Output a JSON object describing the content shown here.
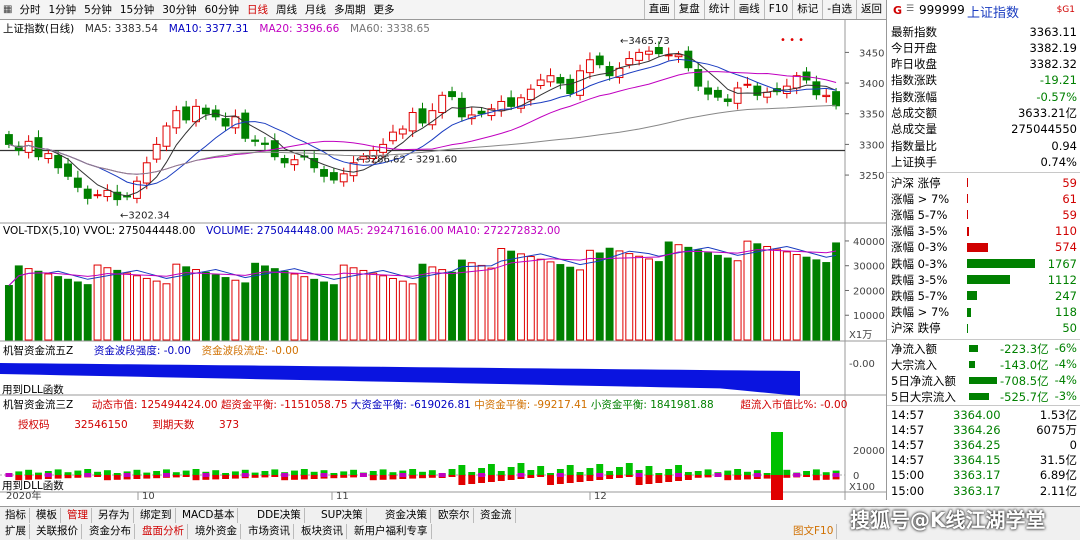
{
  "topbar": {
    "periods": [
      "分时",
      "1分钟",
      "5分钟",
      "15分钟",
      "30分钟",
      "60分钟",
      "日线",
      "周线",
      "月线",
      "多周期",
      "更多"
    ],
    "active": "日线",
    "right_buttons": [
      "直画",
      "复盘",
      "统计",
      "画线",
      "F10",
      "标记",
      "-自选",
      "返回"
    ]
  },
  "symbol": {
    "flag": "G",
    "code": "999999",
    "name": "上证指数",
    "badge": "$G1"
  },
  "main_legend": {
    "title": "上证指数(日线)",
    "ma5": "MA5: 3383.54",
    "ma10": "MA10: 3377.31",
    "ma20": "MA20: 3396.66",
    "ma60": "MA60: 3338.65"
  },
  "main_annotations": {
    "high": "3465.73",
    "low": "3202.34",
    "range": "3286.62 - 3291.60",
    "dots": "• • •"
  },
  "main_ticks": [
    "3450",
    "3400",
    "3350",
    "3300",
    "3250"
  ],
  "vol_legend": {
    "title": "VOL-TDX(5,10)",
    "vvol": "VVOL: 275044448.00",
    "volume": "VOLUME: 275044448.00",
    "ma5": "MA5: 292471616.00",
    "ma10": "MA10: 272272832.00"
  },
  "vol_ticks": [
    "40000",
    "30000",
    "20000",
    "10000"
  ],
  "vol_unit": "X1万",
  "f1_legend": {
    "title": "机智资金流五Z",
    "a": "资金波段强度: -0.00",
    "b": "资金波段流定: -0.00",
    "dll": "用到DLL函数"
  },
  "f1_ticks": [
    "-0.00"
  ],
  "f2_legend": {
    "title": "机智资金流三Z",
    "a": "动态市值: 125494424.00",
    "b": "超资金平衡: -1151058.75",
    "c": "大资金平衡: -619026.81",
    "d": "中资金平衡: -99217.41",
    "e": "小资金平衡: 1841981.88",
    "f": "超流入市值比%: -0.00",
    "auth_label": "授权码",
    "auth_val": "32546150",
    "days_label": "到期天数",
    "days_val": "373",
    "dll": "用到DLL函数"
  },
  "f2_ticks": [
    "20000",
    "0",
    "-20000"
  ],
  "f2_unit": "X100",
  "x_axis": [
    "2020年",
    "10",
    "11",
    "12"
  ],
  "side_quote": [
    {
      "label": "最新指数",
      "value": "3363.11",
      "color": "#000"
    },
    {
      "label": "今日开盘",
      "value": "3382.19",
      "color": "#000"
    },
    {
      "label": "昨日收盘",
      "value": "3382.32",
      "color": "#000"
    },
    {
      "label": "指数涨跌",
      "value": "-19.21",
      "color": "#008000"
    },
    {
      "label": "指数涨幅",
      "value": "-0.57%",
      "color": "#008000"
    },
    {
      "label": "总成交额",
      "value": "3633.21亿",
      "color": "#000"
    },
    {
      "label": "总成交量",
      "value": "275044550",
      "color": "#000"
    },
    {
      "label": "指数量比",
      "value": "0.94",
      "color": "#000"
    },
    {
      "label": "上证换手",
      "value": "0.74%",
      "color": "#000"
    }
  ],
  "side_dist": [
    {
      "label": "沪深 涨停",
      "value": "59",
      "color": "#d00000",
      "bar": 0.01
    },
    {
      "label": "涨幅 > 7%",
      "value": "61",
      "color": "#d00000",
      "bar": 0.01
    },
    {
      "label": "涨幅 5-7%",
      "value": "59",
      "color": "#d00000",
      "bar": 0.01
    },
    {
      "label": "涨幅 3-5%",
      "value": "110",
      "color": "#d00000",
      "bar": 0.03
    },
    {
      "label": "涨幅 0-3%",
      "value": "574",
      "color": "#d00000",
      "bar": 0.3
    },
    {
      "label": "跌幅 0-3%",
      "value": "1767",
      "color": "#008000",
      "bar": 0.97
    },
    {
      "label": "跌幅 3-5%",
      "value": "1112",
      "color": "#008000",
      "bar": 0.62
    },
    {
      "label": "跌幅 5-7%",
      "value": "247",
      "color": "#008000",
      "bar": 0.14
    },
    {
      "label": "跌幅 > 7%",
      "value": "118",
      "color": "#008000",
      "bar": 0.06
    },
    {
      "label": "沪深 跌停",
      "value": "50",
      "color": "#008000",
      "bar": 0.02
    }
  ],
  "side_flow": [
    {
      "label": "净流入额",
      "value": "-223.3亿",
      "pct": "-6%",
      "bar": 0.08
    },
    {
      "label": "大宗流入",
      "value": "-143.0亿",
      "pct": "-4%",
      "bar": 0.05
    },
    {
      "label": "5日净流入额",
      "value": "-708.5亿",
      "pct": "-4%",
      "bar": 0.25
    },
    {
      "label": "5日大宗流入",
      "value": "-525.7亿",
      "pct": "-3%",
      "bar": 0.18
    }
  ],
  "side_ticks": [
    {
      "time": "14:57",
      "price": "3364.00",
      "vol": "1.53亿"
    },
    {
      "time": "14:57",
      "price": "3364.26",
      "vol": "6075万"
    },
    {
      "time": "14:57",
      "price": "3364.25",
      "vol": "0"
    },
    {
      "time": "14:57",
      "price": "3364.15",
      "vol": "31.5亿"
    },
    {
      "time": "15:00",
      "price": "3363.17",
      "vol": "6.89亿"
    },
    {
      "time": "15:00",
      "price": "3363.17",
      "vol": "2.11亿"
    }
  ],
  "bottom_row1": [
    "指标",
    "模板",
    "管理",
    "另存为",
    "绑定到",
    "MACD基本",
    "DDE决策",
    "SUP决策",
    "资金决策",
    "欧奈尔",
    "资金流"
  ],
  "bottom_row1_active": "管理",
  "bottom_row2": [
    "扩展",
    "关联报价",
    "资金分布",
    "盘面分析",
    "境外资金",
    "市场资讯",
    "板块资讯",
    "新用户福利专享"
  ],
  "bottom_row2_active": "盘面分析",
  "bottom_right": "图文F10",
  "watermark": "搜狐号@K线江湖学堂"
}
